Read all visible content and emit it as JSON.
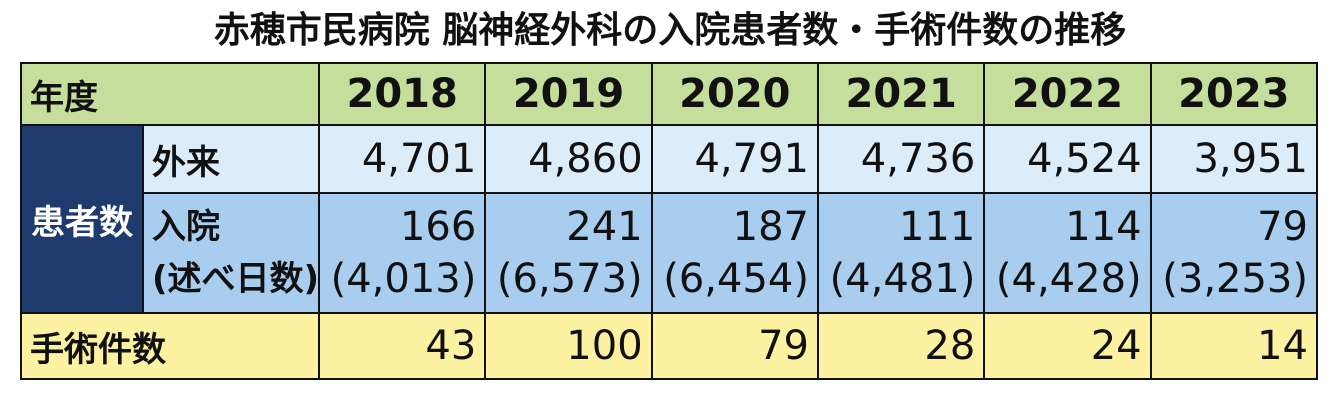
{
  "title": "赤穂市民病院 脳神経外科の入院患者数・手術件数の推移",
  "table": {
    "header": {
      "label": "年度",
      "years": [
        "2018",
        "2019",
        "2020",
        "2021",
        "2022",
        "2023"
      ]
    },
    "patients": {
      "label": "患者数",
      "outpatient": {
        "label": "外来",
        "values": [
          "4,701",
          "4,860",
          "4,791",
          "4,736",
          "4,524",
          "3,951"
        ]
      },
      "inpatient": {
        "label": "入院",
        "sublabel": "(述べ日数)",
        "values": [
          "166",
          "241",
          "187",
          "111",
          "114",
          "79"
        ],
        "days": [
          "(4,013)",
          "(6,573)",
          "(6,454)",
          "(4,481)",
          "(4,428)",
          "(3,253)"
        ]
      }
    },
    "surgery": {
      "label": "手術件数",
      "values": [
        "43",
        "100",
        "79",
        "28",
        "24",
        "14"
      ]
    }
  }
}
